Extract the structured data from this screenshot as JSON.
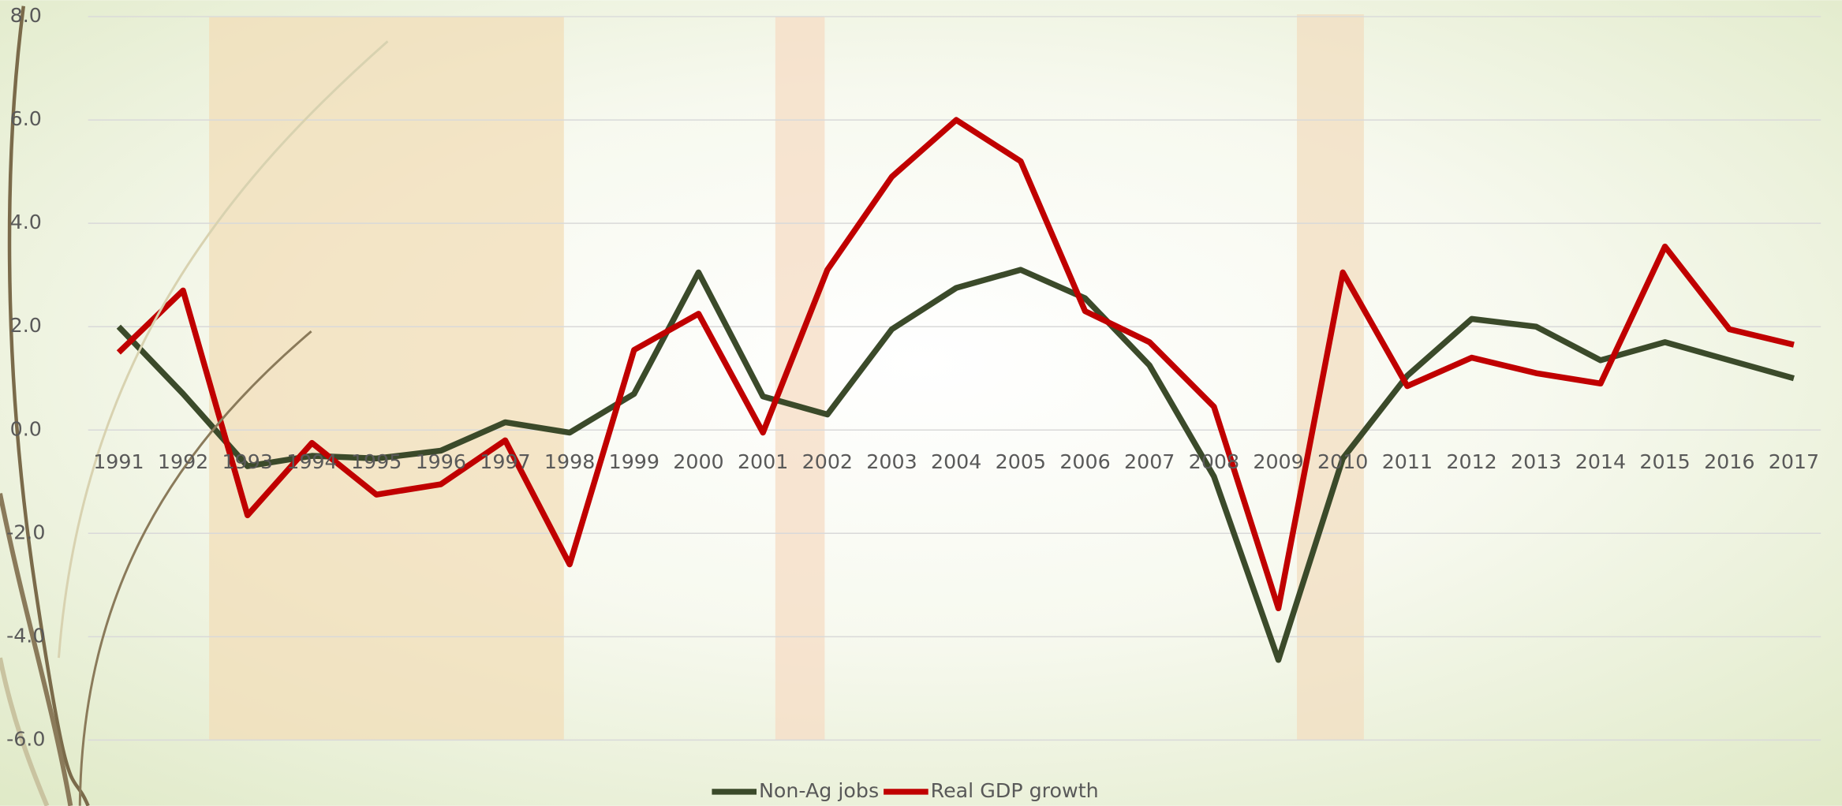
{
  "chart_data": {
    "type": "line",
    "categories": [
      "1991",
      "1992",
      "1993",
      "1994",
      "1995",
      "1996",
      "1997",
      "1998",
      "1999",
      "2000",
      "2001",
      "2002",
      "2003",
      "2004",
      "2005",
      "2006",
      "2007",
      "2008",
      "2009",
      "2010",
      "2011",
      "2012",
      "2013",
      "2014",
      "2015",
      "2016",
      "2017"
    ],
    "series": [
      {
        "name": "Non-Ag jobs",
        "color": "#3b4a2a",
        "values": [
          2.0,
          0.7,
          -0.7,
          -0.5,
          -0.55,
          -0.4,
          0.15,
          -0.05,
          0.7,
          3.05,
          0.65,
          0.3,
          1.95,
          2.75,
          3.1,
          2.55,
          1.25,
          -0.9,
          -4.45,
          -0.55,
          1.05,
          2.15,
          2.0,
          1.35,
          1.7,
          1.35,
          1.0
        ]
      },
      {
        "name": "Real GDP growth",
        "color": "#c00000",
        "values": [
          1.5,
          2.7,
          -1.65,
          -0.25,
          -1.25,
          -1.05,
          -0.2,
          -2.6,
          1.55,
          2.25,
          -0.05,
          3.1,
          4.9,
          6.0,
          5.2,
          2.3,
          1.7,
          0.45,
          -3.45,
          3.05,
          0.85,
          1.4,
          1.1,
          0.9,
          3.55,
          1.95,
          1.65
        ]
      }
    ],
    "ylim": [
      -6,
      8
    ],
    "yticks": [
      {
        "value": 8,
        "label": "8.0"
      },
      {
        "value": 6,
        "label": "6.0"
      },
      {
        "value": 4,
        "label": "4.0"
      },
      {
        "value": 2,
        "label": "2.0"
      },
      {
        "value": 0,
        "label": "0.0"
      },
      {
        "value": -2,
        "label": "-2.0"
      },
      {
        "value": -4,
        "label": "-4.0"
      },
      {
        "value": -6,
        "label": "-6.0"
      }
    ],
    "grid": true,
    "legend": "bottom"
  }
}
